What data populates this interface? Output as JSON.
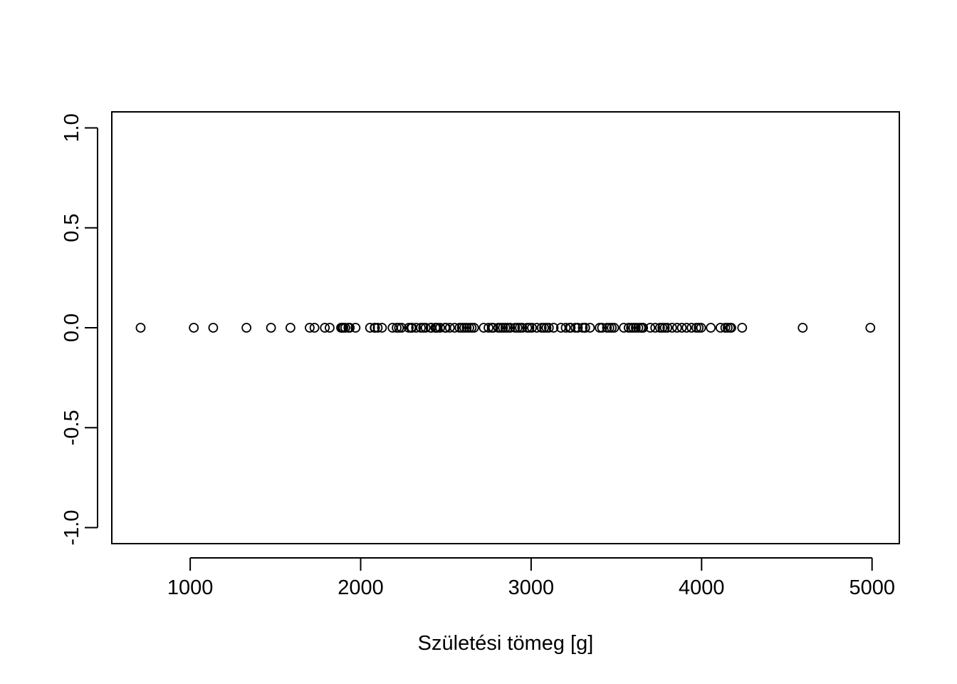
{
  "chart_data": {
    "type": "scatter",
    "title": "",
    "xlabel": "Születési tömeg [g]",
    "ylabel": "",
    "xlim": [
      540,
      5160
    ],
    "ylim": [
      -1.08,
      1.08
    ],
    "x_ticks": [
      1000,
      2000,
      3000,
      4000,
      5000
    ],
    "x_tick_labels": [
      "1000",
      "2000",
      "3000",
      "4000",
      "5000"
    ],
    "y_ticks": [
      -1.0,
      -0.5,
      0.0,
      0.5,
      1.0
    ],
    "y_tick_labels": [
      "-1.0",
      "-0.5",
      "0.0",
      "0.5",
      "1.0"
    ],
    "grid": false,
    "legend": "none",
    "marker": "open-circle",
    "color": "#000000",
    "series": [
      {
        "x": [
          709,
          1021,
          1135,
          1330,
          1474,
          1588,
          1701,
          1729,
          1790,
          1818,
          1885,
          1893,
          1899,
          1910,
          1928,
          1936,
          1970,
          2055,
          2082,
          2084,
          2100,
          2125,
          2187,
          2211,
          2225,
          2240,
          2282,
          2296,
          2301,
          2325,
          2353,
          2367,
          2381,
          2410,
          2414,
          2438,
          2442,
          2450,
          2466,
          2495,
          2500,
          2523,
          2551,
          2580,
          2594,
          2608,
          2622,
          2637,
          2651,
          2665,
          2722,
          2750,
          2769,
          2778,
          2807,
          2821,
          2835,
          2849,
          2863,
          2877,
          2906,
          2920,
          2934,
          2948,
          2977,
          2990,
          3005,
          3033,
          3062,
          3076,
          3090,
          3104,
          3132,
          3175,
          3203,
          3225,
          3232,
          3260,
          3274,
          3303,
          3317,
          3317,
          3345,
          3402,
          3416,
          3445,
          3459,
          3473,
          3487,
          3544,
          3572,
          3586,
          3600,
          3614,
          3629,
          3643,
          3651,
          3657,
          3699,
          3728,
          3756,
          3770,
          3784,
          3799,
          3827,
          3856,
          3884,
          3912,
          3941,
          3969,
          3983,
          3997,
          4054,
          4111,
          4139,
          4153,
          4167,
          4174,
          4238,
          4593,
          4990
        ],
        "y": [
          0,
          0,
          0,
          0,
          0,
          0,
          0,
          0,
          0,
          0,
          0,
          0,
          0,
          0,
          0,
          0,
          0,
          0,
          0,
          0,
          0,
          0,
          0,
          0,
          0,
          0,
          0,
          0,
          0,
          0,
          0,
          0,
          0,
          0,
          0,
          0,
          0,
          0,
          0,
          0,
          0,
          0,
          0,
          0,
          0,
          0,
          0,
          0,
          0,
          0,
          0,
          0,
          0,
          0,
          0,
          0,
          0,
          0,
          0,
          0,
          0,
          0,
          0,
          0,
          0,
          0,
          0,
          0,
          0,
          0,
          0,
          0,
          0,
          0,
          0,
          0,
          0,
          0,
          0,
          0,
          0,
          0,
          0,
          0,
          0,
          0,
          0,
          0,
          0,
          0,
          0,
          0,
          0,
          0,
          0,
          0,
          0,
          0,
          0,
          0,
          0,
          0,
          0,
          0,
          0,
          0,
          0,
          0,
          0,
          0,
          0,
          0,
          0,
          0,
          0,
          0,
          0,
          0,
          0,
          0,
          0
        ]
      }
    ]
  }
}
